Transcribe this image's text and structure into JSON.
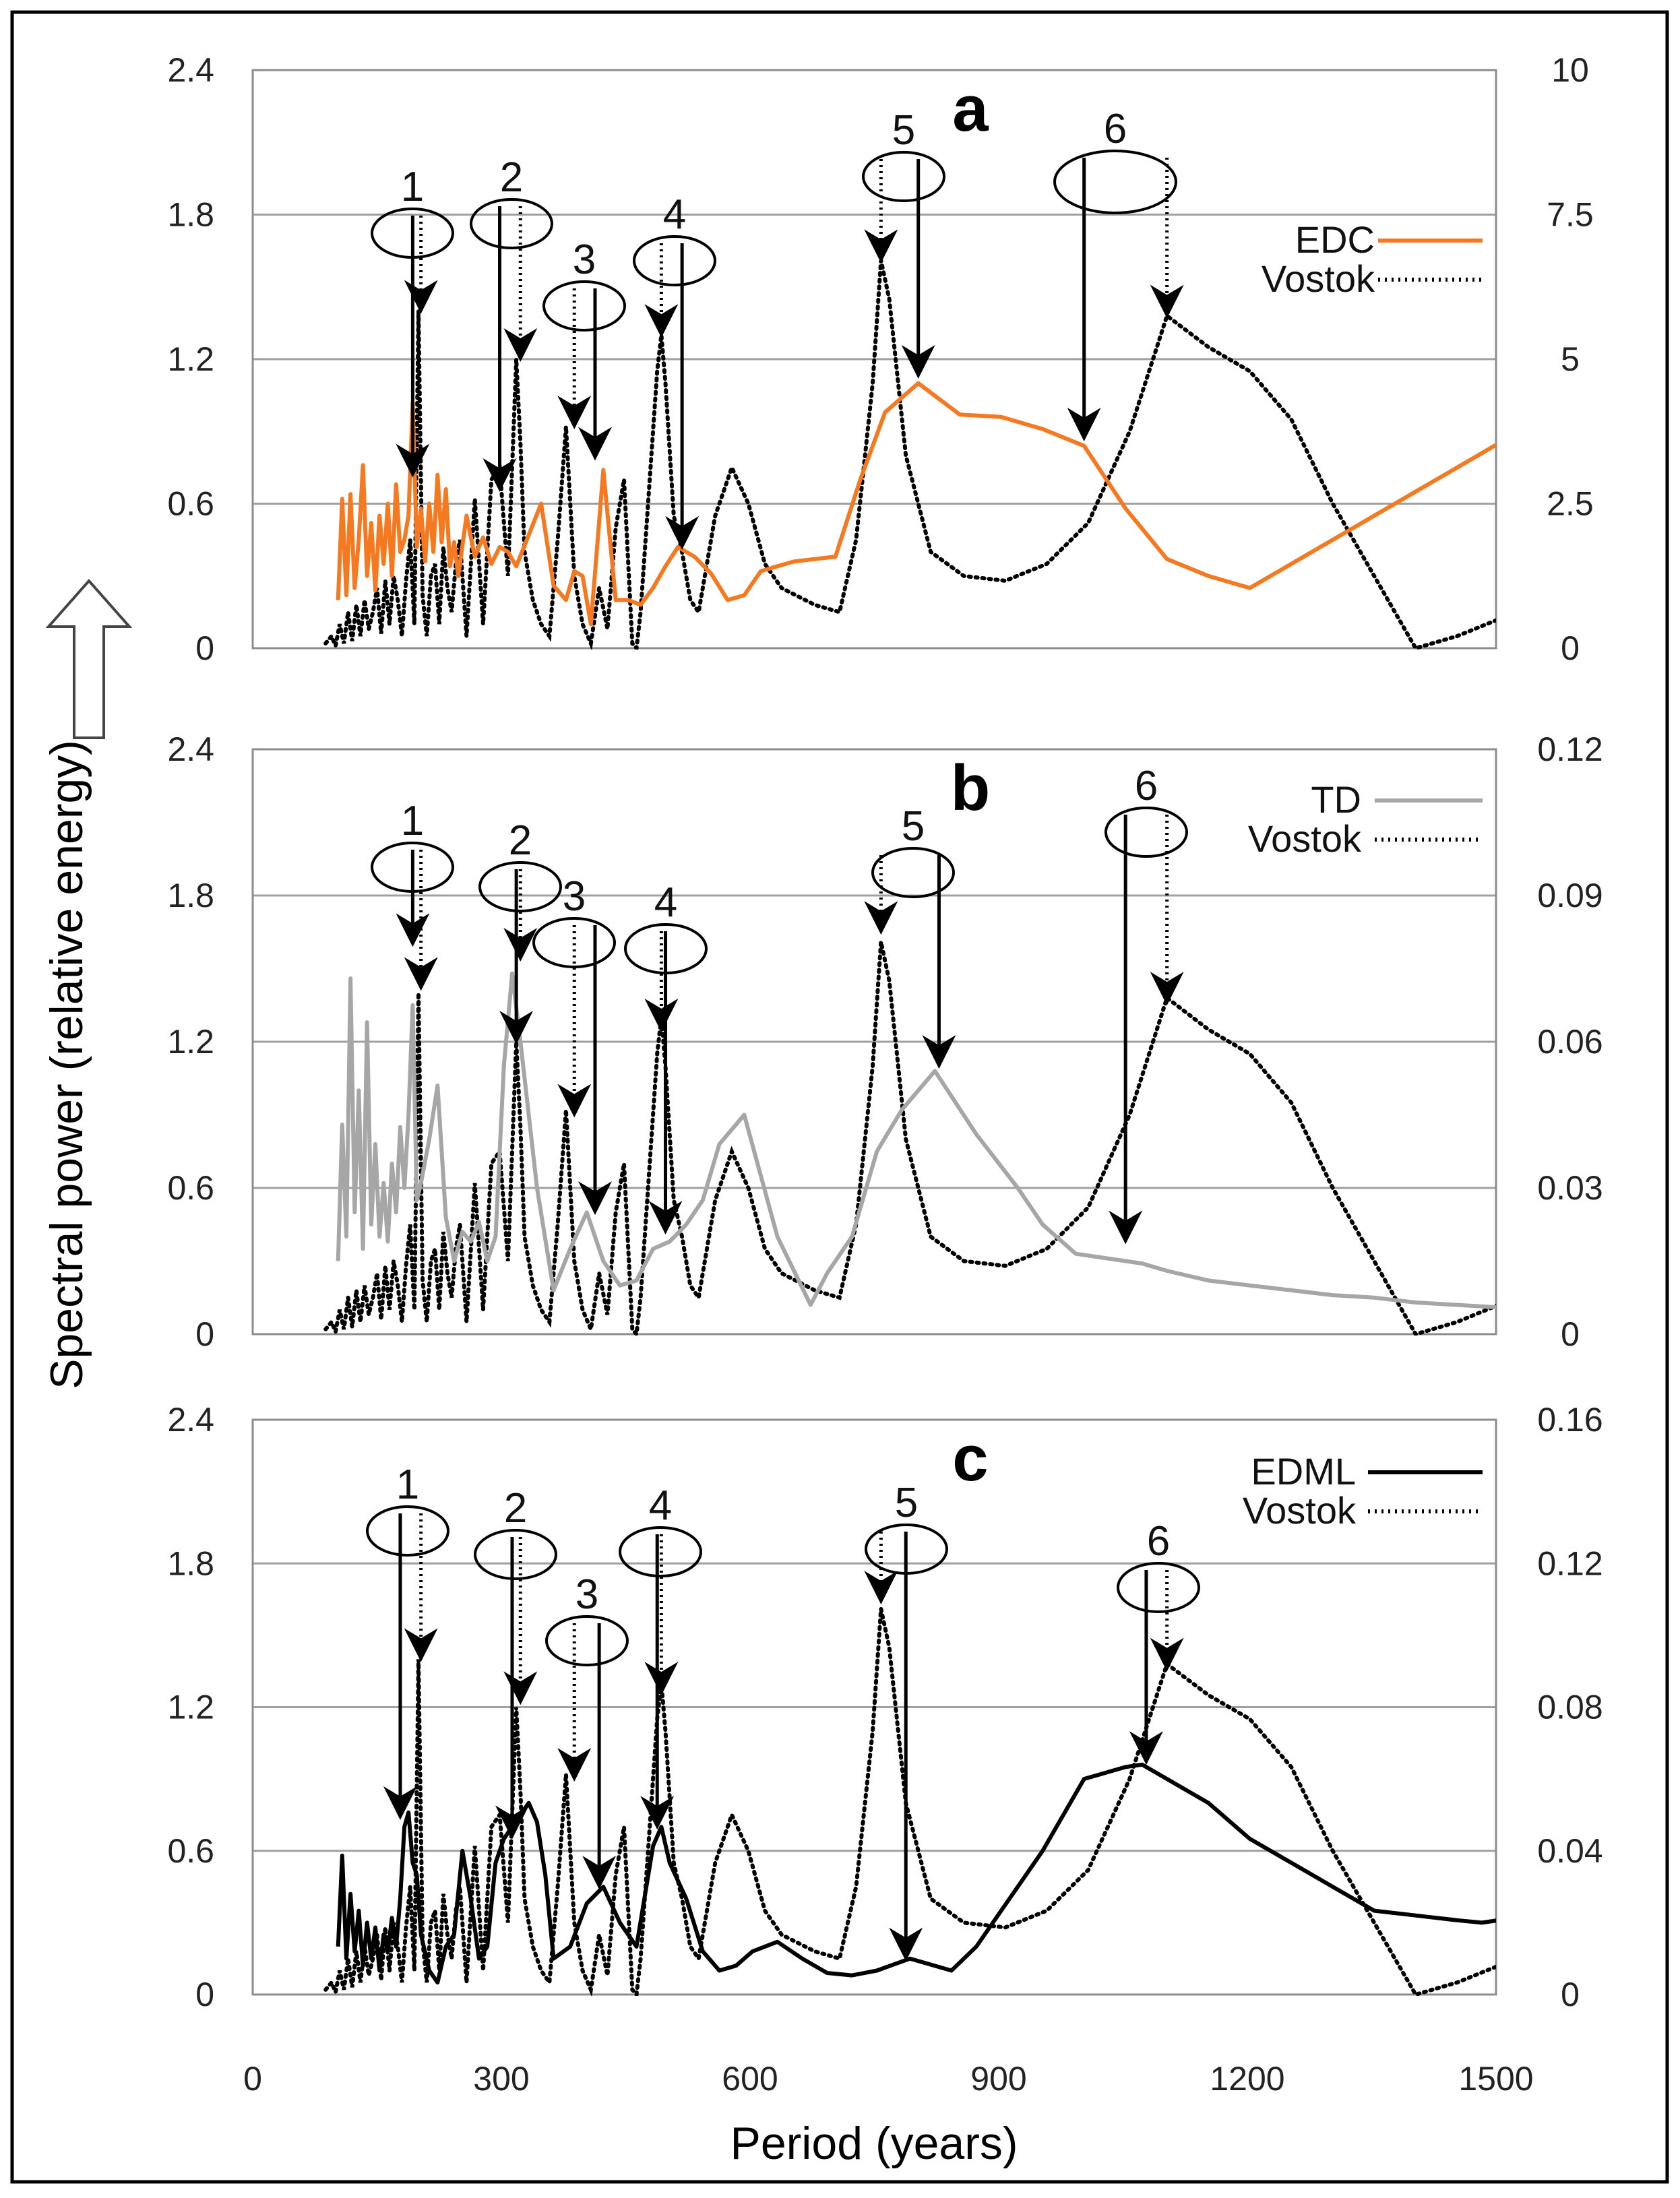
{
  "chart_data": {
    "type": "line",
    "figure": {
      "xlabel": "Period (years)",
      "ylabel": "Spectral power (relative energy)",
      "xlim": [
        0,
        1500
      ],
      "x_ticks": [
        "0",
        "300",
        "600",
        "900",
        "1200",
        "1500"
      ],
      "left_axis_ticks": [
        "0",
        "0.6",
        "1.2",
        "1.8",
        "2.4"
      ],
      "left_ylim": [
        0,
        2.4
      ]
    },
    "panels": [
      {
        "label": "a",
        "right_ylim": [
          0,
          10
        ],
        "right_ticks": [
          "0",
          "2.5",
          "5",
          "7.5",
          "10"
        ],
        "legend_position": "top-right",
        "primary": {
          "name": "EDC",
          "color": "#f47920",
          "axis": "left",
          "x": [
            103,
            108,
            113,
            118,
            123,
            128,
            133,
            138,
            143,
            148,
            153,
            158,
            163,
            168,
            173,
            178,
            183,
            188,
            193,
            198,
            203,
            208,
            213,
            218,
            223,
            228,
            233,
            238,
            243,
            248,
            258,
            268,
            278,
            288,
            298,
            308,
            318,
            333,
            348,
            363,
            378,
            388,
            398,
            408,
            423,
            438,
            453,
            468,
            483,
            498,
            513,
            533,
            553,
            573,
            593,
            613,
            633,
            653,
            703,
            733,
            763,
            803,
            853,
            903,
            953,
            1003,
            1053,
            1103,
            1153,
            1203,
            1253,
            1303,
            1353,
            1403,
            1453,
            1503
          ],
          "y": [
            0.2,
            0.62,
            0.22,
            0.64,
            0.25,
            0.45,
            0.76,
            0.3,
            0.52,
            0.24,
            0.55,
            0.35,
            0.6,
            0.3,
            0.68,
            0.4,
            0.45,
            0.55,
            1.02,
            0.42,
            0.58,
            0.36,
            0.6,
            0.4,
            0.72,
            0.44,
            0.66,
            0.34,
            0.44,
            0.3,
            0.55,
            0.38,
            0.46,
            0.35,
            0.42,
            0.4,
            0.34,
            0.47,
            0.6,
            0.26,
            0.2,
            0.32,
            0.3,
            0.1,
            0.74,
            0.2,
            0.2,
            0.18,
            0.25,
            0.34,
            0.42,
            0.38,
            0.31,
            0.2,
            0.22,
            0.32,
            0.34,
            0.36,
            0.38,
            0.7,
            0.98,
            1.1,
            0.97,
            0.96,
            0.91,
            0.84,
            0.58,
            0.37,
            0.3,
            0.25,
            0.35,
            0.45,
            0.55,
            0.65,
            0.75,
            0.85
          ]
        },
        "annotations": [
          {
            "label": "1",
            "solid_to": [
              193,
              0.72
            ],
            "dotted_to": [
              203,
              1.4
            ]
          },
          {
            "label": "2",
            "solid_to": [
              298,
              0.66
            ],
            "dotted_to": [
              323,
              1.2
            ]
          },
          {
            "label": "3",
            "solid_to": [
              413,
              0.79
            ],
            "dotted_to": [
              388,
              0.92
            ]
          },
          {
            "label": "4",
            "solid_to": [
              518,
              0.42
            ],
            "dotted_to": [
              493,
              1.3
            ]
          },
          {
            "label": "5",
            "solid_to": [
              803,
              1.13
            ],
            "dotted_to": [
              758,
              1.61
            ]
          },
          {
            "label": "6",
            "solid_to": [
              1003,
              0.87
            ],
            "dotted_to": [
              1103,
              1.38
            ]
          }
        ]
      },
      {
        "label": "b",
        "right_ylim": [
          0,
          0.12
        ],
        "right_ticks": [
          "0",
          "0.03",
          "0.06",
          "0.09",
          "0.12"
        ],
        "legend_position": "top-right",
        "primary": {
          "name": "TD",
          "color": "#a6a6a6",
          "axis": "left",
          "x": [
            103,
            108,
            113,
            118,
            123,
            128,
            133,
            138,
            143,
            148,
            153,
            158,
            163,
            168,
            173,
            178,
            183,
            188,
            193,
            198,
            203,
            213,
            223,
            233,
            243,
            253,
            263,
            273,
            283,
            293,
            303,
            313,
            323,
            343,
            363,
            383,
            403,
            423,
            443,
            463,
            483,
            503,
            523,
            543,
            563,
            593,
            633,
            673,
            693,
            723,
            753,
            783,
            823,
            873,
            923,
            953,
            993,
            1033,
            1073,
            1103,
            1153,
            1203,
            1253,
            1303,
            1353,
            1403,
            1453,
            1503
          ],
          "y": [
            0.3,
            0.86,
            0.4,
            1.46,
            0.5,
            1.0,
            0.35,
            1.28,
            0.45,
            0.78,
            0.4,
            0.62,
            0.38,
            0.7,
            0.5,
            0.85,
            0.6,
            0.9,
            1.35,
            0.55,
            0.62,
            0.8,
            1.02,
            0.48,
            0.3,
            0.42,
            0.38,
            0.46,
            0.3,
            0.4,
            1.1,
            1.48,
            1.2,
            0.6,
            0.18,
            0.35,
            0.5,
            0.3,
            0.2,
            0.22,
            0.35,
            0.38,
            0.45,
            0.55,
            0.78,
            0.9,
            0.4,
            0.12,
            0.25,
            0.4,
            0.75,
            0.92,
            1.08,
            0.82,
            0.6,
            0.45,
            0.33,
            0.31,
            0.29,
            0.26,
            0.22,
            0.2,
            0.18,
            0.16,
            0.15,
            0.13,
            0.12,
            0.11
          ]
        },
        "annotations": [
          {
            "label": "1",
            "solid_to": [
              193,
              1.6
            ],
            "dotted_to": [
              203,
              1.42
            ]
          },
          {
            "label": "2",
            "solid_to": [
              318,
              1.2
            ],
            "dotted_to": [
              323,
              1.54
            ]
          },
          {
            "label": "3",
            "solid_to": [
              413,
              0.5
            ],
            "dotted_to": [
              388,
              0.9
            ]
          },
          {
            "label": "4",
            "solid_to": [
              498,
              0.42
            ],
            "dotted_to": [
              493,
              1.25
            ]
          },
          {
            "label": "5",
            "solid_to": [
              828,
              1.1
            ],
            "dotted_to": [
              758,
              1.65
            ]
          },
          {
            "label": "6",
            "solid_to": [
              1053,
              0.38
            ],
            "dotted_to": [
              1103,
              1.36
            ]
          }
        ]
      },
      {
        "label": "c",
        "right_ylim": [
          0,
          0.16
        ],
        "right_ticks": [
          "0",
          "0.04",
          "0.08",
          "0.12",
          "0.16"
        ],
        "legend_position": "top-right",
        "primary": {
          "name": "EDML",
          "color": "#000000",
          "axis": "left",
          "x": [
            103,
            108,
            113,
            118,
            123,
            128,
            133,
            138,
            143,
            148,
            153,
            158,
            163,
            168,
            173,
            178,
            183,
            188,
            193,
            198,
            203,
            213,
            223,
            233,
            243,
            253,
            263,
            273,
            283,
            293,
            303,
            313,
            323,
            333,
            343,
            353,
            363,
            383,
            403,
            423,
            443,
            463,
            483,
            493,
            503,
            523,
            543,
            563,
            583,
            603,
            633,
            663,
            693,
            723,
            753,
            793,
            843,
            873,
            903,
            953,
            1003,
            1053,
            1073,
            1103,
            1153,
            1203,
            1253,
            1303,
            1353,
            1403,
            1453,
            1483,
            1503
          ],
          "y": [
            0.2,
            0.58,
            0.15,
            0.42,
            0.18,
            0.35,
            0.12,
            0.3,
            0.15,
            0.28,
            0.1,
            0.25,
            0.18,
            0.32,
            0.2,
            0.4,
            0.7,
            0.76,
            0.55,
            0.5,
            0.25,
            0.1,
            0.05,
            0.2,
            0.25,
            0.6,
            0.4,
            0.15,
            0.2,
            0.55,
            0.65,
            0.7,
            0.75,
            0.8,
            0.72,
            0.5,
            0.15,
            0.2,
            0.38,
            0.45,
            0.3,
            0.2,
            0.62,
            0.7,
            0.55,
            0.4,
            0.18,
            0.1,
            0.12,
            0.18,
            0.22,
            0.15,
            0.09,
            0.08,
            0.1,
            0.15,
            0.1,
            0.2,
            0.35,
            0.6,
            0.9,
            0.95,
            0.96,
            0.9,
            0.8,
            0.65,
            0.55,
            0.45,
            0.35,
            0.33,
            0.31,
            0.3,
            0.31
          ]
        },
        "annotations": [
          {
            "label": "1",
            "solid_to": [
              178,
              0.74
            ],
            "dotted_to": [
              203,
              1.4
            ]
          },
          {
            "label": "2",
            "solid_to": [
              313,
              0.66
            ],
            "dotted_to": [
              323,
              1.22
            ]
          },
          {
            "label": "3",
            "solid_to": [
              418,
              0.45
            ],
            "dotted_to": [
              388,
              0.9
            ]
          },
          {
            "label": "4",
            "solid_to": [
              488,
              0.7
            ],
            "dotted_to": [
              493,
              1.26
            ]
          },
          {
            "label": "5",
            "solid_to": [
              788,
              0.15
            ],
            "dotted_to": [
              758,
              1.64
            ]
          },
          {
            "label": "6",
            "solid_to": [
              1078,
              0.97
            ],
            "dotted_to": [
              1103,
              1.36
            ]
          }
        ]
      }
    ],
    "vostok": {
      "name": "Vostok",
      "color": "#000000",
      "style": "dotted",
      "axis": "left-equivalent",
      "x": [
        88,
        95,
        100,
        105,
        110,
        115,
        120,
        125,
        130,
        135,
        140,
        145,
        150,
        155,
        160,
        165,
        170,
        175,
        180,
        185,
        190,
        195,
        200,
        205,
        210,
        215,
        220,
        225,
        230,
        235,
        240,
        245,
        250,
        258,
        268,
        278,
        288,
        298,
        308,
        318,
        323,
        328,
        338,
        348,
        358,
        368,
        378,
        388,
        398,
        408,
        418,
        428,
        438,
        448,
        458,
        463,
        468,
        478,
        488,
        493,
        498,
        508,
        518,
        528,
        538,
        548,
        558,
        578,
        598,
        618,
        638,
        678,
        708,
        728,
        748,
        758,
        768,
        788,
        818,
        858,
        908,
        958,
        1008,
        1058,
        1103,
        1153,
        1203,
        1253,
        1303,
        1353,
        1403,
        1453,
        1503
      ],
      "y": [
        0.02,
        0.05,
        0.01,
        0.1,
        0.02,
        0.15,
        0.03,
        0.18,
        0.05,
        0.2,
        0.08,
        0.15,
        0.25,
        0.06,
        0.28,
        0.1,
        0.3,
        0.2,
        0.05,
        0.28,
        0.45,
        0.1,
        1.4,
        0.22,
        0.05,
        0.3,
        0.35,
        0.1,
        0.42,
        0.25,
        0.15,
        0.35,
        0.45,
        0.05,
        0.62,
        0.1,
        0.7,
        0.75,
        0.3,
        1.2,
        0.85,
        0.4,
        0.2,
        0.1,
        0.05,
        0.45,
        0.92,
        0.3,
        0.1,
        0.02,
        0.25,
        0.08,
        0.5,
        0.7,
        0.02,
        0.0,
        0.15,
        0.65,
        1.15,
        1.3,
        1.1,
        0.55,
        0.4,
        0.2,
        0.15,
        0.35,
        0.55,
        0.75,
        0.6,
        0.35,
        0.25,
        0.18,
        0.15,
        0.45,
        1.1,
        1.61,
        1.45,
        0.8,
        0.4,
        0.3,
        0.28,
        0.35,
        0.52,
        0.9,
        1.38,
        1.25,
        1.15,
        0.95,
        0.6,
        0.3,
        0.0,
        0.05,
        0.12
      ]
    }
  }
}
